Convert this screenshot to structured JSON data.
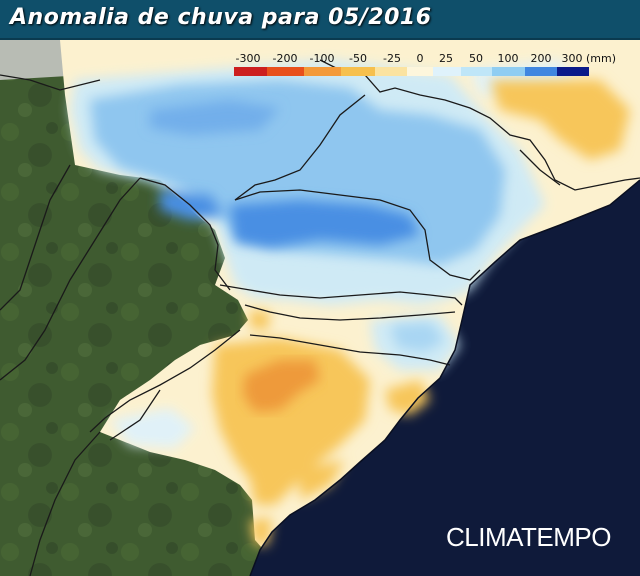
{
  "title": "Anomalia de chuva para 05/2016",
  "legend": {
    "labels": [
      "-300",
      "-200",
      "-100",
      "-50",
      "-25",
      "0",
      "25",
      "50",
      "100",
      "200",
      "300"
    ],
    "unit": "(mm)",
    "colors": [
      "#cc1f1f",
      "#e8501c",
      "#f39a3a",
      "#f6c04e",
      "#fbe3a0",
      "#fdf6dc",
      "#dff2fb",
      "#bfe6f8",
      "#8fcdf2",
      "#3f86e0",
      "#0a1a8a"
    ]
  },
  "colors": {
    "ocean": "#0f1a3a",
    "land": "#3d5a2e",
    "orange": "#f1a747",
    "light_orange": "#f7c65a",
    "cream": "#fcf1cf",
    "light_blue": "#cdeaf8",
    "mid_blue": "#8fc6ef",
    "blue": "#4a8fe3",
    "border": "#1a1a1a"
  },
  "brand": "CLIMATEMPO"
}
